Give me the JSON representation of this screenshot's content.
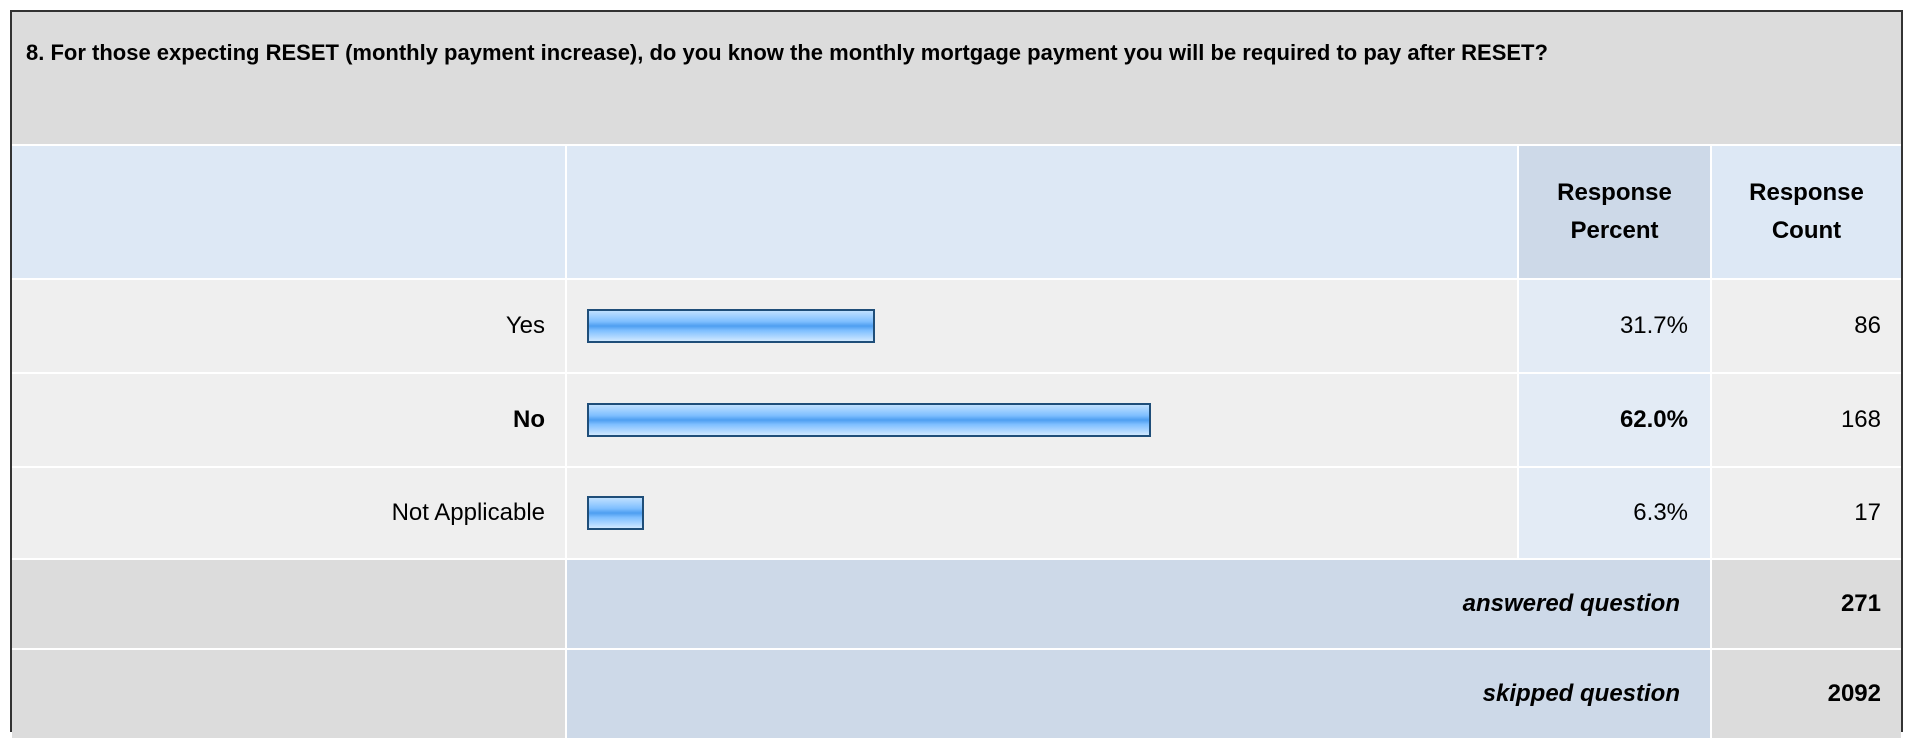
{
  "question": "8. For those expecting RESET (monthly payment increase), do you know the monthly mortgage payment you will be required to pay after RESET?",
  "header": {
    "percent": "Response Percent",
    "count": "Response Count"
  },
  "rows": [
    {
      "label": "Yes",
      "percent": 31.7,
      "percent_label": "31.7%",
      "count": 86,
      "bold": false
    },
    {
      "label": "No",
      "percent": 62.0,
      "percent_label": "62.0%",
      "count": 168,
      "bold": true
    },
    {
      "label": "Not Applicable",
      "percent": 6.3,
      "percent_label": "6.3%",
      "count": 17,
      "bold": false
    }
  ],
  "answered": {
    "label": "answered question",
    "count": 271
  },
  "skipped": {
    "label": "skipped question",
    "count": 2092
  }
}
